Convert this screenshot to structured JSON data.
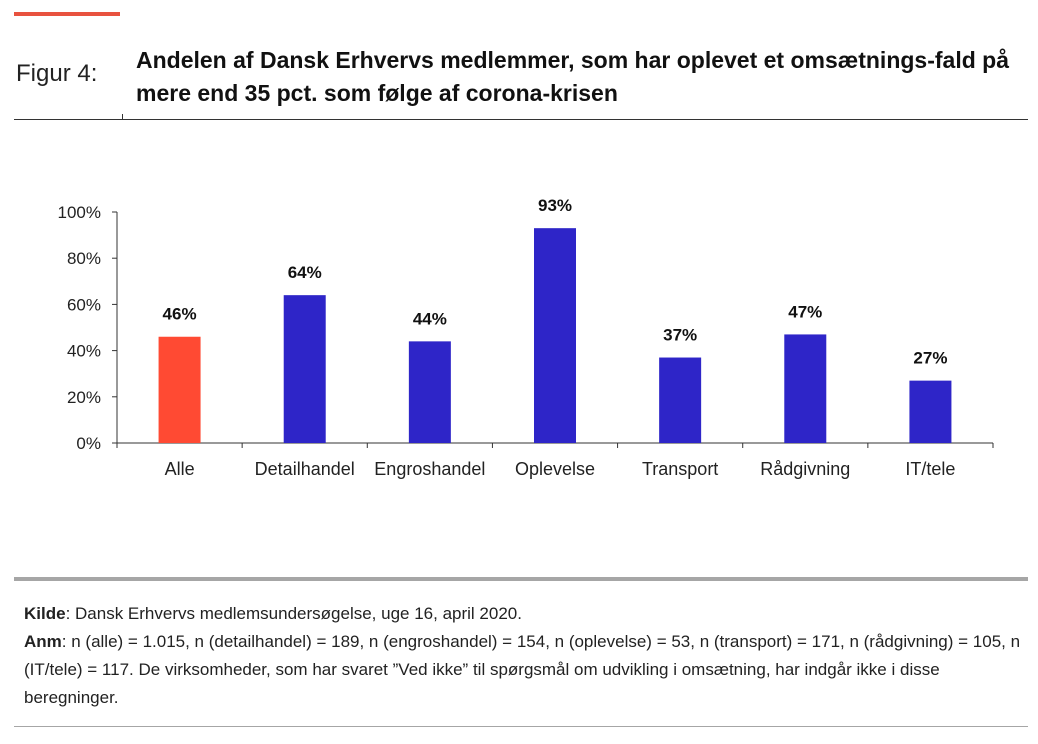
{
  "header": {
    "figure_label": "Figur 4:",
    "title": "Andelen af Dansk Erhvervs medlemmer, som har oplevet et omsætnings-fald på mere end 35 pct. som følge af corona-krisen"
  },
  "chart_data": {
    "type": "bar",
    "categories": [
      "Alle",
      "Detailhandel",
      "Engroshandel",
      "Oplevelse",
      "Transport",
      "Rådgivning",
      "IT/tele"
    ],
    "values": [
      46,
      64,
      44,
      93,
      37,
      47,
      27
    ],
    "data_labels": [
      "46%",
      "64%",
      "44%",
      "93%",
      "37%",
      "47%",
      "27%"
    ],
    "ylim": [
      0,
      100
    ],
    "yticks": [
      "0%",
      "20%",
      "40%",
      "60%",
      "80%",
      "100%"
    ],
    "bar_colors": [
      "#ff4a33",
      "#2e25c8",
      "#2e25c8",
      "#2e25c8",
      "#2e25c8",
      "#2e25c8",
      "#2e25c8"
    ],
    "grid": false,
    "title": "",
    "xlabel": "",
    "ylabel": ""
  },
  "footer": {
    "source_label": "Kilde",
    "source_text": ": Dansk Erhvervs medlemsundersøgelse, uge 16, april 2020.",
    "note_label": "Anm",
    "note_text": ": n (alle) = 1.015, n (detailhandel) = 189, n (engroshandel) = 154, n (oplevelse) = 53, n (transport) = 171, n (rådgivning) = 105, n (IT/tele) = 117. De virksomheder, som har svaret ”Ved ikke” til spørgsmål om udvikling i omsætning, har indgår ikke i disse beregninger."
  },
  "colors": {
    "accent": "#e8523f",
    "highlight_bar": "#ff4a33",
    "bar": "#2e25c8"
  }
}
